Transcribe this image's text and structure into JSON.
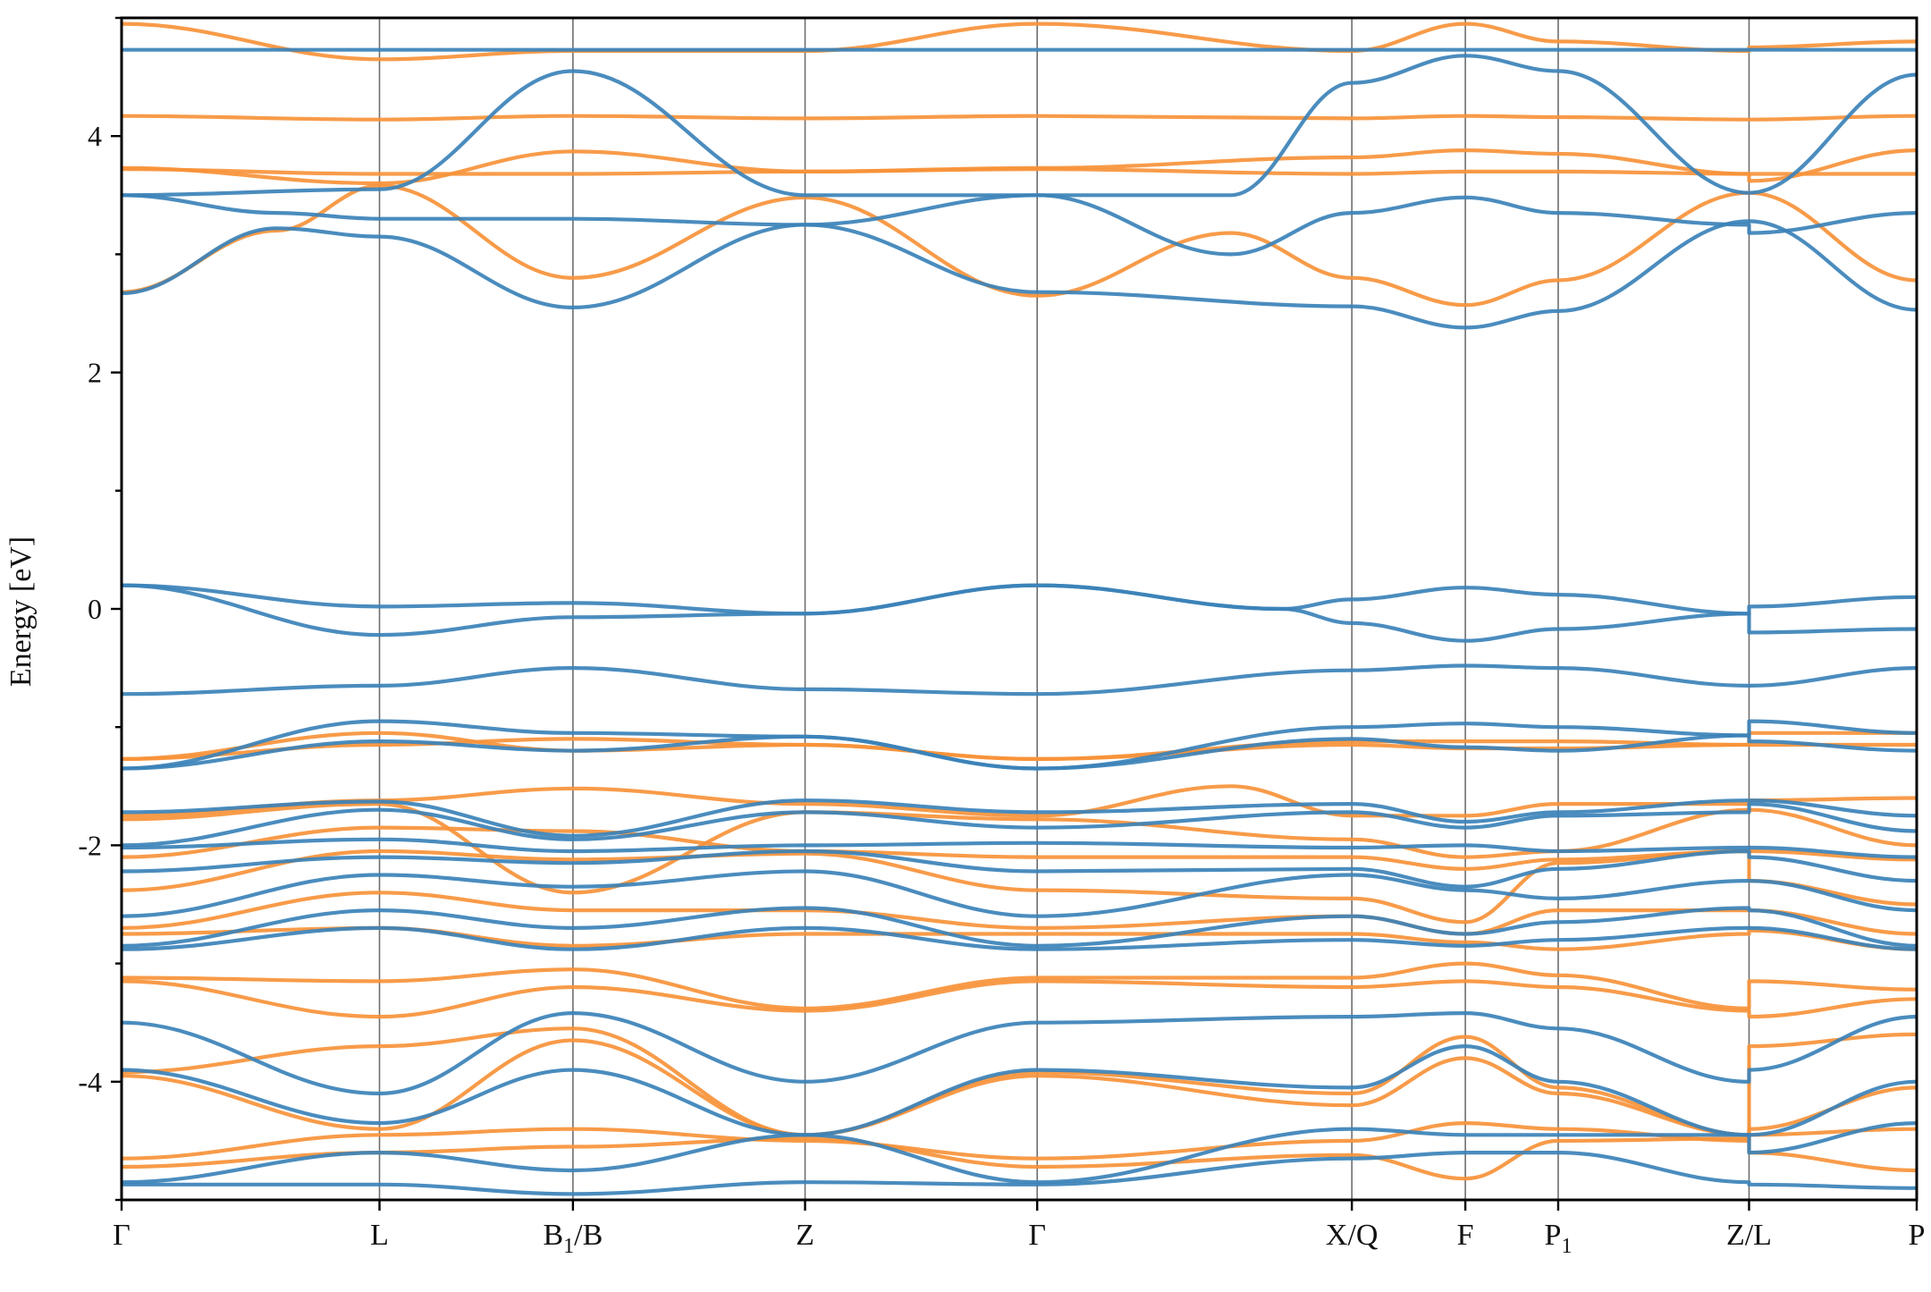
{
  "chart_data": {
    "type": "line",
    "title": "",
    "xlabel": "",
    "ylabel": "Energy [eV]",
    "ylim": [
      -5,
      5
    ],
    "grid": false,
    "yticks": [
      {
        "value": 4,
        "label": "4"
      },
      {
        "value": 2,
        "label": "2"
      },
      {
        "value": 0,
        "label": "0"
      },
      {
        "value": -2,
        "label": "-2"
      },
      {
        "value": -4,
        "label": "-4"
      }
    ],
    "yminor": [
      5,
      3,
      1,
      -1,
      -3,
      -5
    ],
    "path_labels": [
      {
        "x": 0.0,
        "label": "Γ",
        "sub": ""
      },
      {
        "x": 1.0,
        "label": "L",
        "sub": ""
      },
      {
        "x": 1.75,
        "label": "B",
        "sub": "1",
        "tail": "/B"
      },
      {
        "x": 2.65,
        "label": "Z",
        "sub": ""
      },
      {
        "x": 3.55,
        "label": "Γ",
        "sub": ""
      },
      {
        "x": 4.77,
        "label": "X/Q",
        "sub": ""
      },
      {
        "x": 5.21,
        "label": "F",
        "sub": ""
      },
      {
        "x": 5.57,
        "label": "P",
        "sub": "1"
      },
      {
        "x": 6.31,
        "label": "Z/L",
        "sub": ""
      },
      {
        "x": 6.96,
        "label": "P",
        "sub": ""
      }
    ],
    "xlim": [
      0,
      6.96
    ],
    "colors": {
      "spin_up": "#3b82b8",
      "spin_down": "#f7923a"
    },
    "series": [
      {
        "spin": "up",
        "x": [
          0,
          1.0,
          1.75,
          2.65,
          3.55,
          4.77,
          5.21,
          5.57,
          6.31,
          6.31,
          6.96
        ],
        "y": [
          4.73,
          4.73,
          4.73,
          4.73,
          4.73,
          4.73,
          4.73,
          4.73,
          4.73,
          4.73,
          4.73
        ]
      },
      {
        "spin": "up",
        "x": [
          0,
          1.0,
          1.75,
          2.65,
          3.55,
          4.3,
          4.77,
          5.21,
          5.57,
          6.31,
          6.31,
          6.96
        ],
        "y": [
          3.5,
          3.55,
          4.55,
          3.5,
          3.5,
          3.5,
          4.45,
          4.68,
          4.55,
          3.52,
          3.52,
          4.52
        ]
      },
      {
        "spin": "up",
        "x": [
          0,
          0.6,
          1.0,
          1.75,
          2.65,
          3.55,
          4.77,
          5.21,
          5.57,
          6.31,
          6.31,
          6.96
        ],
        "y": [
          2.67,
          3.22,
          3.15,
          2.55,
          3.25,
          2.68,
          2.56,
          2.38,
          2.52,
          3.28,
          3.28,
          2.53
        ]
      },
      {
        "spin": "up",
        "x": [
          0,
          0.6,
          1.0,
          1.75,
          2.65,
          3.55,
          4.3,
          4.77,
          5.21,
          5.57,
          6.31,
          6.31,
          6.96
        ],
        "y": [
          3.5,
          3.35,
          3.3,
          3.3,
          3.25,
          3.5,
          3.0,
          3.35,
          3.48,
          3.35,
          3.25,
          3.18,
          3.35
        ]
      },
      {
        "spin": "up",
        "x": [
          0,
          1.0,
          1.75,
          2.65,
          3.55,
          4.5,
          4.77,
          5.21,
          5.57,
          6.31,
          6.31,
          6.96
        ],
        "y": [
          0.2,
          0.02,
          0.05,
          -0.04,
          0.2,
          0.0,
          0.08,
          0.18,
          0.12,
          -0.04,
          0.02,
          0.1
        ]
      },
      {
        "spin": "up",
        "x": [
          0,
          1.0,
          1.75,
          2.65,
          3.55,
          4.5,
          4.77,
          5.21,
          5.57,
          6.31,
          6.31,
          6.96
        ],
        "y": [
          0.2,
          -0.22,
          -0.07,
          -0.04,
          0.2,
          0.0,
          -0.12,
          -0.27,
          -0.17,
          -0.04,
          -0.2,
          -0.17
        ]
      },
      {
        "spin": "up",
        "x": [
          0,
          1.0,
          1.75,
          2.65,
          3.55,
          4.77,
          5.21,
          5.57,
          6.31,
          6.31,
          6.96
        ],
        "y": [
          -0.72,
          -0.65,
          -0.5,
          -0.68,
          -0.72,
          -0.52,
          -0.48,
          -0.5,
          -0.65,
          -0.65,
          -0.5
        ]
      },
      {
        "spin": "up",
        "x": [
          0,
          1.0,
          1.75,
          2.65,
          3.55,
          4.77,
          5.21,
          5.57,
          6.31,
          6.31,
          6.96
        ],
        "y": [
          -1.35,
          -0.95,
          -1.05,
          -1.08,
          -1.35,
          -1.0,
          -0.97,
          -1.0,
          -1.07,
          -0.95,
          -1.05
        ]
      },
      {
        "spin": "up",
        "x": [
          0,
          1.0,
          1.75,
          2.65,
          3.55,
          4.77,
          5.21,
          5.57,
          6.31,
          6.31,
          6.96
        ],
        "y": [
          -1.35,
          -1.12,
          -1.2,
          -1.08,
          -1.35,
          -1.1,
          -1.17,
          -1.2,
          -1.07,
          -1.12,
          -1.2
        ]
      },
      {
        "spin": "up",
        "x": [
          0,
          1.0,
          1.75,
          2.65,
          3.55,
          4.77,
          5.21,
          5.57,
          6.31,
          6.31,
          6.96
        ],
        "y": [
          -1.72,
          -1.63,
          -1.92,
          -1.62,
          -1.72,
          -1.65,
          -1.8,
          -1.72,
          -1.62,
          -1.62,
          -1.75
        ]
      },
      {
        "spin": "up",
        "x": [
          0,
          1.0,
          1.75,
          2.65,
          3.55,
          4.77,
          5.21,
          5.57,
          6.31,
          6.31,
          6.96
        ],
        "y": [
          -2.0,
          -1.7,
          -1.95,
          -1.72,
          -1.85,
          -1.72,
          -1.85,
          -1.75,
          -1.72,
          -1.65,
          -1.88
        ]
      },
      {
        "spin": "up",
        "x": [
          0,
          1.0,
          1.75,
          2.65,
          3.55,
          4.77,
          5.21,
          5.57,
          6.31,
          6.31,
          6.96
        ],
        "y": [
          -2.02,
          -1.95,
          -2.05,
          -2.0,
          -1.98,
          -2.02,
          -2.0,
          -2.05,
          -2.02,
          -2.02,
          -2.1
        ]
      },
      {
        "spin": "up",
        "x": [
          0,
          1.0,
          1.75,
          2.65,
          3.55,
          4.77,
          5.21,
          5.57,
          6.31,
          6.31,
          6.96
        ],
        "y": [
          -2.22,
          -2.1,
          -2.15,
          -2.05,
          -2.22,
          -2.2,
          -2.35,
          -2.2,
          -2.05,
          -2.1,
          -2.3
        ]
      },
      {
        "spin": "up",
        "x": [
          0,
          1.0,
          1.75,
          2.65,
          3.55,
          4.77,
          5.21,
          5.57,
          6.31,
          6.31,
          6.96
        ],
        "y": [
          -2.6,
          -2.25,
          -2.35,
          -2.22,
          -2.6,
          -2.25,
          -2.38,
          -2.45,
          -2.3,
          -2.3,
          -2.55
        ]
      },
      {
        "spin": "up",
        "x": [
          0,
          1.0,
          1.75,
          2.65,
          3.55,
          4.77,
          5.21,
          5.57,
          6.31,
          6.31,
          6.96
        ],
        "y": [
          -2.85,
          -2.55,
          -2.7,
          -2.53,
          -2.85,
          -2.6,
          -2.75,
          -2.65,
          -2.53,
          -2.55,
          -2.85
        ]
      },
      {
        "spin": "up",
        "x": [
          0,
          1.0,
          1.75,
          2.65,
          3.55,
          4.77,
          5.21,
          5.57,
          6.31,
          6.31,
          6.96
        ],
        "y": [
          -2.88,
          -2.7,
          -2.88,
          -2.7,
          -2.88,
          -2.8,
          -2.85,
          -2.8,
          -2.7,
          -2.7,
          -2.88
        ]
      },
      {
        "spin": "up",
        "x": [
          0,
          1.0,
          1.75,
          2.65,
          3.55,
          4.77,
          5.21,
          5.57,
          6.31,
          6.31,
          6.96
        ],
        "y": [
          -3.5,
          -4.1,
          -3.42,
          -4.0,
          -3.5,
          -3.45,
          -3.42,
          -3.55,
          -4.0,
          -3.9,
          -3.45
        ]
      },
      {
        "spin": "up",
        "x": [
          0,
          1.0,
          1.75,
          2.65,
          3.55,
          4.77,
          5.21,
          5.57,
          6.31,
          6.31,
          6.96
        ],
        "y": [
          -3.9,
          -4.35,
          -3.9,
          -4.45,
          -3.9,
          -4.05,
          -3.7,
          -4.0,
          -4.45,
          -4.45,
          -4.0
        ]
      },
      {
        "spin": "up",
        "x": [
          0,
          1.0,
          1.75,
          2.65,
          3.55,
          4.77,
          5.21,
          5.57,
          6.31,
          6.31,
          6.96
        ],
        "y": [
          -4.85,
          -4.6,
          -4.75,
          -4.45,
          -4.85,
          -4.4,
          -4.45,
          -4.45,
          -4.45,
          -4.6,
          -4.35
        ]
      },
      {
        "spin": "up",
        "x": [
          0,
          1.0,
          1.75,
          2.65,
          3.55,
          4.77,
          5.21,
          5.57,
          6.31,
          6.31,
          6.96
        ],
        "y": [
          -4.87,
          -4.87,
          -4.95,
          -4.85,
          -4.87,
          -4.65,
          -4.6,
          -4.6,
          -4.85,
          -4.87,
          -4.9
        ]
      },
      {
        "spin": "down",
        "x": [
          0,
          1.0,
          1.75,
          2.65,
          3.55,
          4.77,
          5.21,
          5.57,
          6.31,
          6.31,
          6.96
        ],
        "y": [
          4.95,
          4.65,
          4.72,
          4.72,
          4.95,
          4.72,
          4.95,
          4.8,
          4.72,
          4.75,
          4.8
        ]
      },
      {
        "spin": "down",
        "x": [
          0,
          1.0,
          1.75,
          2.65,
          3.55,
          4.77,
          5.21,
          5.57,
          6.31,
          6.31,
          6.96
        ],
        "y": [
          4.17,
          4.14,
          4.17,
          4.15,
          4.17,
          4.15,
          4.17,
          4.16,
          4.14,
          4.14,
          4.17
        ]
      },
      {
        "spin": "down",
        "x": [
          0,
          1.0,
          1.75,
          2.65,
          3.55,
          4.77,
          5.21,
          5.57,
          6.31,
          6.31,
          6.96
        ],
        "y": [
          3.73,
          3.6,
          3.87,
          3.7,
          3.73,
          3.82,
          3.88,
          3.85,
          3.68,
          3.62,
          3.88
        ]
      },
      {
        "spin": "down",
        "x": [
          0,
          1.0,
          1.75,
          2.65,
          3.55,
          4.77,
          5.21,
          5.57,
          6.31,
          6.31,
          6.96
        ],
        "y": [
          3.72,
          3.68,
          3.68,
          3.7,
          3.72,
          3.68,
          3.7,
          3.7,
          3.68,
          3.68,
          3.68
        ]
      },
      {
        "spin": "down",
        "x": [
          0,
          0.6,
          1.0,
          1.75,
          2.65,
          3.55,
          4.3,
          4.77,
          5.21,
          5.57,
          6.31,
          6.31,
          6.96
        ],
        "y": [
          2.68,
          3.2,
          3.58,
          2.8,
          3.48,
          2.65,
          3.18,
          2.8,
          2.57,
          2.78,
          3.52,
          3.52,
          2.78
        ]
      },
      {
        "spin": "down",
        "x": [
          0,
          1.0,
          1.75,
          2.65,
          3.55,
          4.77,
          5.21,
          5.57,
          6.31,
          6.31,
          6.96
        ],
        "y": [
          -1.27,
          -1.05,
          -1.2,
          -1.15,
          -1.27,
          -1.12,
          -1.12,
          -1.12,
          -1.15,
          -1.05,
          -1.05
        ]
      },
      {
        "spin": "down",
        "x": [
          0,
          1.0,
          1.75,
          2.65,
          3.55,
          4.77,
          5.21,
          5.57,
          6.31,
          6.31,
          6.96
        ],
        "y": [
          -1.27,
          -1.15,
          -1.1,
          -1.15,
          -1.27,
          -1.15,
          -1.18,
          -1.18,
          -1.15,
          -1.15,
          -1.15
        ]
      },
      {
        "spin": "down",
        "x": [
          0,
          1.0,
          1.75,
          2.65,
          3.55,
          4.3,
          4.77,
          5.21,
          5.57,
          6.31,
          6.31,
          6.96
        ],
        "y": [
          -1.75,
          -1.62,
          -1.52,
          -1.65,
          -1.75,
          -1.5,
          -1.75,
          -1.75,
          -1.65,
          -1.65,
          -1.62,
          -1.6
        ]
      },
      {
        "spin": "down",
        "x": [
          0,
          1.0,
          1.75,
          2.65,
          3.55,
          4.77,
          5.21,
          5.57,
          6.31,
          6.31,
          6.96
        ],
        "y": [
          -1.78,
          -1.65,
          -2.4,
          -1.72,
          -1.78,
          -1.95,
          -2.1,
          -2.05,
          -1.7,
          -1.7,
          -2.0
        ]
      },
      {
        "spin": "down",
        "x": [
          0,
          1.0,
          1.75,
          2.65,
          3.55,
          4.77,
          5.21,
          5.57,
          6.31,
          6.31,
          6.96
        ],
        "y": [
          -2.1,
          -1.85,
          -1.88,
          -2.05,
          -2.1,
          -2.1,
          -2.2,
          -2.12,
          -2.05,
          -2.05,
          -2.12
        ]
      },
      {
        "spin": "down",
        "x": [
          0,
          1.0,
          1.75,
          2.65,
          3.55,
          4.77,
          5.21,
          5.57,
          6.31,
          6.31,
          6.96
        ],
        "y": [
          -2.38,
          -2.05,
          -2.12,
          -2.07,
          -2.38,
          -2.45,
          -2.65,
          -2.15,
          -2.05,
          -2.3,
          -2.5
        ]
      },
      {
        "spin": "down",
        "x": [
          0,
          1.0,
          1.75,
          2.65,
          3.55,
          4.77,
          5.21,
          5.57,
          6.31,
          6.31,
          6.96
        ],
        "y": [
          -2.7,
          -2.4,
          -2.55,
          -2.55,
          -2.7,
          -2.6,
          -2.75,
          -2.55,
          -2.55,
          -2.55,
          -2.75
        ]
      },
      {
        "spin": "down",
        "x": [
          0,
          1.0,
          1.75,
          2.65,
          3.55,
          4.77,
          5.21,
          5.57,
          6.31,
          6.31,
          6.96
        ],
        "y": [
          -2.75,
          -2.7,
          -2.85,
          -2.75,
          -2.75,
          -2.75,
          -2.82,
          -2.88,
          -2.75,
          -2.72,
          -2.88
        ]
      },
      {
        "spin": "down",
        "x": [
          0,
          1.0,
          1.75,
          2.65,
          3.55,
          4.77,
          5.21,
          5.57,
          6.31,
          6.31,
          6.96
        ],
        "y": [
          -3.12,
          -3.15,
          -3.05,
          -3.38,
          -3.12,
          -3.12,
          -3.0,
          -3.1,
          -3.38,
          -3.15,
          -3.22
        ]
      },
      {
        "spin": "down",
        "x": [
          0,
          1.0,
          1.75,
          2.65,
          3.55,
          4.77,
          5.21,
          5.57,
          6.31,
          6.31,
          6.96
        ],
        "y": [
          -3.15,
          -3.45,
          -3.2,
          -3.4,
          -3.15,
          -3.2,
          -3.15,
          -3.2,
          -3.4,
          -3.45,
          -3.3
        ]
      },
      {
        "spin": "down",
        "x": [
          0,
          1.0,
          1.75,
          2.65,
          3.55,
          4.77,
          5.21,
          5.57,
          6.31,
          6.31,
          6.96
        ],
        "y": [
          -3.92,
          -3.7,
          -3.55,
          -4.45,
          -3.92,
          -4.1,
          -3.62,
          -4.05,
          -4.45,
          -3.7,
          -3.6
        ]
      },
      {
        "spin": "down",
        "x": [
          0,
          1.0,
          1.75,
          2.65,
          3.55,
          4.77,
          5.21,
          5.57,
          6.31,
          6.31,
          6.96
        ],
        "y": [
          -3.95,
          -4.4,
          -3.65,
          -4.45,
          -3.95,
          -4.2,
          -3.8,
          -4.1,
          -4.45,
          -4.4,
          -4.05
        ]
      },
      {
        "spin": "down",
        "x": [
          0,
          1.0,
          1.75,
          2.65,
          3.55,
          4.77,
          5.21,
          5.57,
          6.31,
          6.31,
          6.96
        ],
        "y": [
          -4.65,
          -4.45,
          -4.4,
          -4.5,
          -4.65,
          -4.5,
          -4.35,
          -4.4,
          -4.5,
          -4.45,
          -4.4
        ]
      },
      {
        "spin": "down",
        "x": [
          0,
          1.0,
          1.75,
          2.65,
          3.55,
          4.77,
          5.21,
          5.57,
          6.31,
          6.31,
          6.96
        ],
        "y": [
          -4.72,
          -4.6,
          -4.55,
          -4.48,
          -4.72,
          -4.62,
          -4.82,
          -4.5,
          -4.48,
          -4.6,
          -4.75
        ]
      }
    ]
  }
}
